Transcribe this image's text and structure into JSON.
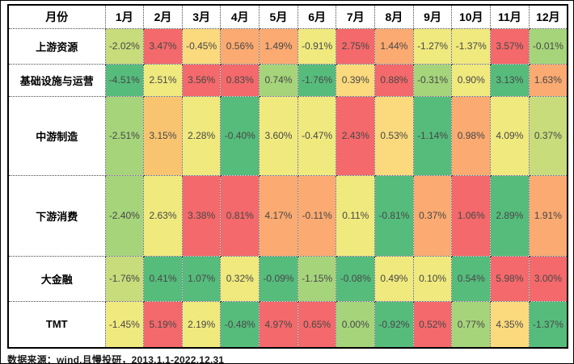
{
  "chart_data": {
    "type": "heatmap",
    "corner_label": "月份",
    "columns": [
      "1月",
      "2月",
      "3月",
      "4月",
      "5月",
      "6月",
      "7月",
      "8月",
      "9月",
      "10月",
      "11月",
      "12月"
    ],
    "unit": "%",
    "value_format": "two-decimal percent",
    "palette": {
      "g": "#56BC7C",
      "lg": "#A6D47B",
      "yg": "#C8DC7C",
      "y": "#F0E97E",
      "sy": "#FBD97D",
      "so": "#F9C470",
      "o": "#FBAA71",
      "r": "#F4696B"
    },
    "series": [
      {
        "name": "上游资源",
        "values": [
          -2.02,
          3.47,
          -0.45,
          0.56,
          1.49,
          -0.91,
          2.75,
          1.44,
          -1.27,
          -1.37,
          3.57,
          -0.01
        ],
        "cell_colors": [
          "yg",
          "r",
          "sy",
          "o",
          "o",
          "y",
          "r",
          "o",
          "y",
          "y",
          "r",
          "lg"
        ]
      },
      {
        "name": "基础设施与运营",
        "values": [
          -4.51,
          2.51,
          3.56,
          0.83,
          0.74,
          -1.76,
          0.39,
          0.88,
          -0.31,
          0.9,
          3.13,
          1.63
        ],
        "cell_colors": [
          "g",
          "y",
          "r",
          "r",
          "lg",
          "g",
          "sy",
          "r",
          "lg",
          "y",
          "g",
          "o"
        ]
      },
      {
        "name": "中游制造",
        "values": [
          -2.51,
          3.15,
          2.28,
          -0.4,
          3.6,
          -0.47,
          2.43,
          0.53,
          -1.14,
          0.98,
          4.09,
          0.37
        ],
        "cell_colors": [
          "lg",
          "so",
          "y",
          "g",
          "y",
          "y",
          "r",
          "sy",
          "g",
          "o",
          "y",
          "yg"
        ]
      },
      {
        "name": "下游消费",
        "values": [
          -2.4,
          2.63,
          3.38,
          0.81,
          4.17,
          -0.11,
          0.11,
          -0.81,
          0.37,
          1.06,
          2.89,
          1.91
        ],
        "cell_colors": [
          "lg",
          "y",
          "r",
          "r",
          "o",
          "o",
          "y",
          "g",
          "o",
          "r",
          "g",
          "o"
        ]
      },
      {
        "name": "大金融",
        "values": [
          -1.76,
          0.41,
          1.07,
          0.32,
          -0.09,
          -1.15,
          -0.08,
          0.49,
          0.1,
          0.54,
          5.98,
          3.0
        ],
        "cell_colors": [
          "yg",
          "g",
          "g",
          "y",
          "g",
          "lg",
          "g",
          "y",
          "y",
          "g",
          "r",
          "r"
        ]
      },
      {
        "name": "TMT",
        "values": [
          -1.45,
          5.19,
          2.19,
          -0.48,
          4.97,
          0.65,
          0.0,
          -0.92,
          0.52,
          0.77,
          4.35,
          -1.37
        ],
        "cell_colors": [
          "y",
          "r",
          "y",
          "g",
          "r",
          "r",
          "lg",
          "g",
          "r",
          "lg",
          "sy",
          "g"
        ]
      }
    ]
  },
  "footer": {
    "source_note": "数据来源：wind,且慢投研，2013.1.1-2022.12.31"
  }
}
